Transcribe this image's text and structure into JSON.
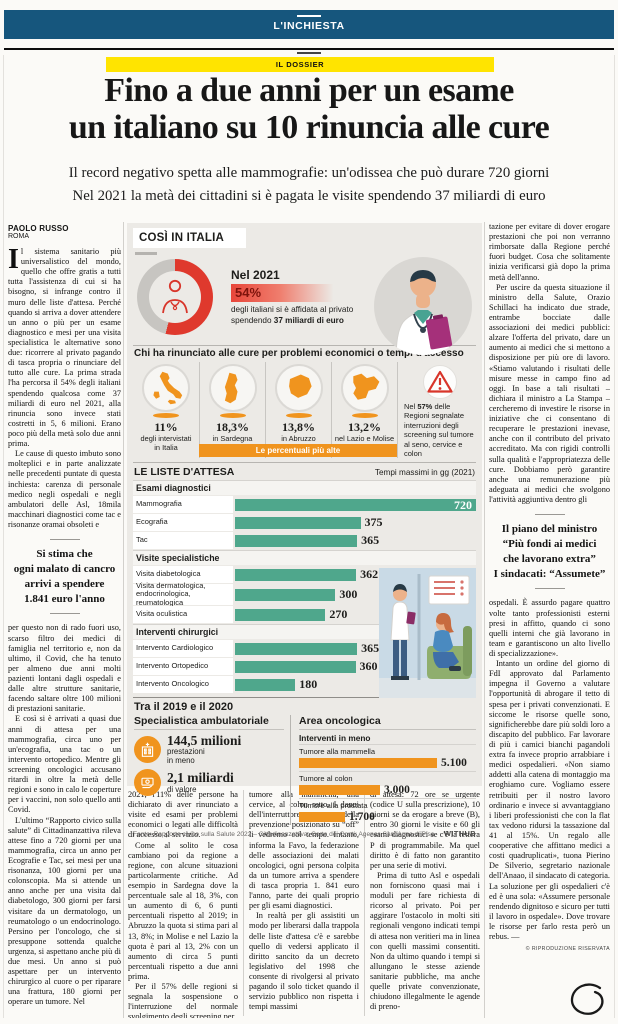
{
  "masthead": {
    "section": "L'INCHIESTA",
    "kicker": "IL DOSSIER"
  },
  "headline": [
    "Fino a due anni per un esame",
    "un italiano su 10 rinuncia alle cure"
  ],
  "standfirst": [
    "Il record negativo spetta alle mammografie: un'odissea che può durare 720 giorni",
    "Nel 2021 la metà dei cittadini si è pagata le visite spendendo 37 miliardi di euro"
  ],
  "byline": {
    "author": "PAOLO RUSSO",
    "place": "ROMA"
  },
  "infographic": {
    "title": "COSÌ IN ITALIA",
    "donut": {
      "year": "Nel 2021",
      "value": "54%",
      "pct": 54,
      "desc": "degli italiani si è affidata al privato",
      "desc2_pre": "spendendo ",
      "desc2_bold": "37 miliardi di euro"
    },
    "renounce": {
      "header": "Chi ha rinunciato alle cure per problemi economici o tempi d'accesso",
      "items": [
        {
          "region": "italia",
          "value": "11%",
          "label": "degli intervistati\nin Italia"
        },
        {
          "region": "sardegna",
          "value": "18,3%",
          "label": "in Sardegna"
        },
        {
          "region": "abruzzo",
          "value": "13,8%",
          "label": "in Abruzzo"
        },
        {
          "region": "lazio-molise",
          "value": "13,2%",
          "label": "nel Lazio e Molise"
        }
      ],
      "banner": "Le percentuali più alte",
      "warning_pre": "Nel ",
      "warning_bold": "57%",
      "warning_post": " delle Regioni segnalate interruzioni degli screening sul tumore al seno, cervice e colon"
    },
    "waiting": {
      "title": "LE LISTE D'ATTESA",
      "unit": "Tempi massimi in gg (2021)",
      "max": 720,
      "sections": [
        {
          "header": "Esami diagnostici",
          "rows": [
            {
              "label": "Mammografia",
              "value": 720,
              "display": "720",
              "inside": true
            },
            {
              "label": "Ecografia",
              "value": 375,
              "display": "375"
            },
            {
              "label": "Tac",
              "value": 365,
              "display": "365"
            }
          ]
        },
        {
          "header": "Visite specialistiche",
          "rows": [
            {
              "label": "Visita diabetologica",
              "value": 362,
              "display": "362"
            },
            {
              "label": "Visita dermatologica,\nendocrinologica, reumatologica",
              "value": 300,
              "display": "300",
              "tall": true
            },
            {
              "label": "Visita oculistica",
              "value": 270,
              "display": "270"
            }
          ]
        },
        {
          "header": "Interventi chirurgici",
          "rows": [
            {
              "label": "Intervento Cardiologico",
              "value": 365,
              "display": "365"
            },
            {
              "label": "Intervento Ortopedico",
              "value": 360,
              "display": "360"
            },
            {
              "label": "Intervento Oncologico",
              "value": 180,
              "display": "180"
            }
          ]
        }
      ]
    },
    "period": {
      "title": "Tra il 2019 e il 2020",
      "left": {
        "header": "Specialistica ambulatoriale",
        "stats": [
          {
            "icon": "hospital-icon",
            "big": "144,5 milioni",
            "small": "prestazioni\nin meno"
          },
          {
            "icon": "money-icon",
            "big": "2,1 miliardi",
            "small": "di valore"
          }
        ]
      },
      "right": {
        "header": "Area oncologica",
        "sub": "Interventi in meno",
        "max": 5100,
        "bars": [
          {
            "label": "Tumore alla mammella",
            "value": 5100,
            "display": "5.100"
          },
          {
            "label": "Tumore al colon",
            "value": 3000,
            "display": "3.000"
          },
          {
            "label": "Tumore alla prostata",
            "value": 1700,
            "display": "1.700"
          }
        ]
      }
    },
    "source": "Fonte: Rapporto civico sulla Salute 2022 – Cittadinanzattiva; Corte dei Conti; Agenas Sant'Anna di Pisa",
    "credit": "WITHUB"
  },
  "article": {
    "copyright": "© RIPRODUZIONE RISERVATA",
    "columns": [
      {
        "blocks": [
          {
            "t": "para",
            "drop": "I",
            "noindent": true,
            "text": "l sistema sanitario più universalistico del mondo, quello che offre gratis a tutti tutta l'assistenza di cui si ha bisogno, si infrange contro il muro delle liste d'attesa. Perché quando si arriva a dover attendere un anno o più per un esame diagnostico e mesi per una visita specialistica le alternative sono due: ricorrere al privato pagando di tasca propria o rinunciare del tutto alle cure. La prima strada l'ha percorsa il 54% degli italiani spendendo qualcosa come 37 miliardi di euro nel 2021, alla rinuncia sono invece stati costretti in 5, 6 milioni. Erano poco più della metà solo due anni prima."
          },
          {
            "t": "para",
            "text": "Le cause di questo imbuto sono molteplici e in parte analizzate nelle precedenti puntate di questa inchiesta: carenza di personale medico negli ospedali e negli ambulatori delle Asl, 18mila macchinari diagnostici come tac e risonanze oramai obsoleti e"
          },
          {
            "t": "quote",
            "lines": [
              "Si stima che",
              "ogni malato di cancro",
              "arrivi a spendere",
              "1.841 euro l'anno"
            ]
          },
          {
            "t": "para",
            "noindent": true,
            "text": "per questo non di rado fuori uso, scarso filtro dei medici di famiglia nel territorio e, non da ultimo, il Covid, che ha tenuto per almeno due anni molti pazienti lontani dagli ospedali e dalle altre strutture sanitarie, facendo saltare oltre 100 milioni di prestazioni sanitarie."
          },
          {
            "t": "para",
            "text": "E così si è arrivati a quasi due anni di attesa per una mammografia, circa uno per un'ecografia, una tac o un intervento ortopedico. Mentre gli screening oncologici accusano ritardi in oltre la metà delle regioni e sono in calo le coperture per i vaccini, non solo quello anti Covid."
          },
          {
            "t": "para",
            "text": "L'ultimo “Rapporto civico sulla salute” di Cittadinanzattiva rileva attese fino a 720 giorni per una mammografia, circa un anno per Ecografie e Tac, sei mesi per una risonanza, 100 giorni per una colonscopia. Ma si attende un anno anche per una visita dal diabetologo, 300 giorni per farsi visitare da un dermatologo, un reumatologo o un endocrinologo. Persino per l'oncologo, che si presuppone sottenda qualche urgenza, si aspettano anche più di due mesi. Un anno si può aspettare per un intervento chirurgico al cuore o per riparare una frattura, 180 giorni per operare un tumore. Nel"
          }
        ]
      },
      {
        "blocks": [
          {
            "t": "para",
            "noindent": true,
            "text": "2021, l'11% delle persone ha dichiarato di aver rinunciato a visite ed esami per problemi economici o legati alle difficoltà di accesso al servizio."
          },
          {
            "t": "para",
            "text": "Come al solito le cosa cambiano poi da regione a regione, con alcune situazioni particolarmente critiche. Ad esempio in Sardegna dove la percentuale sale al 18, 3%, con un aumento di 6, 6 punti percentuali rispetto al 2019; in Abruzzo la quota si stima pari al 13, 8%; in Molise e nel Lazio la quota è pari al 13, 2% con un aumento di circa 5 punti percentuali rispetto a due anni prima."
          },
          {
            "t": "para",
            "text": "Per il 57% delle regioni si segnala la sospensione o l'interruzione del normale svolgimento degli screening per"
          }
        ]
      },
      {
        "blocks": [
          {
            "t": "para",
            "noindent": true,
            "text": "tumore alla mammella, alla cervice, al colon retto. I danni dell'interruttore della prevenzione posizionato su “off” li vedremo col tempo. Intanto, informa la Favo, la federazione delle associazioni dei malati oncologici, ogni persona colpita da un tumore arriva a spendere di tasca propria 1. 841 euro l'anno, parte dei quali proprio per gli esami diagnostici."
          },
          {
            "t": "para",
            "text": "In realtà per gli assistiti un modo per liberarsi dalla trappola delle liste d'attesa c'è e sarebbe quello di vedersi applicato il diritto sancito da un decreto legislativo del 1998 che consente di rivolgersi al privato pagando il solo ticket quando il servizio pubblico non rispetta i tempi massimi"
          }
        ]
      },
      {
        "blocks": [
          {
            "t": "para",
            "noindent": true,
            "text": "di attesa: 72 ore se urgente (codice U sulla prescrizione), 10 giorni se da erogare a breve (B), entro 30 giorni le visite e 60 gli esami diagnostici se c'è la lettera P di programmabile. Ma quel diritto è di fatto non garantito per una serie di motivi."
          },
          {
            "t": "para",
            "text": "Prima di tutto Asl e ospedali non forniscono quasi mai i moduli per fare richiesta di ricorso al privato. Poi per aggirare l'ostacolo in molti siti regionali vengono indicati tempi di attesa non veritieri ma in linea con quelli massimi consentiti. Non da ultimo quando i tempi si allungano le stesse aziende sanitarie pubbliche, ma anche quelle private convenzionate, chiudono illegalmente le agende di preno-"
          }
        ]
      },
      {
        "blocks": [
          {
            "t": "para",
            "noindent": true,
            "text": "tazione per evitare di dover erogare prestazioni che poi non verranno rimborsate dalla Regione perché fuori budget. Cosa che solitamente inizia verificarsi già dopo la prima metà dell'anno."
          },
          {
            "t": "para",
            "text": "Per uscire da questa situazione il ministro della Salute, Orazio Schillaci ha indicato due strade, entrambe bocciate dalle associazioni dei medici pubblici: alzare l'offerta del privato, dare un aumento ai medici che si mettono a disposizione per più ore di lavoro. «Stiamo valutando i risultati delle misure messe in campo fino ad oggi. In base a tali risultati – dichiara il ministro a La Stampa – cercheremo di investire le risorse in iniziative che ci consentano di recuperare le prestazioni inevase, anche con il contributo del privato accreditato. Ma con rigidi controlli sulla qualità e l'appropriatezza delle cure. Dobbiamo però garantire anche una remunerazione più adeguata ai medici che svolgono l'attività aggiuntiva dentro gli"
          },
          {
            "t": "quote",
            "lines": [
              "Il piano del ministro",
              "“Più fondi ai medici",
              "che lavorano extra”",
              "I sindacati: “Assumete”"
            ]
          },
          {
            "t": "para",
            "noindent": true,
            "text": "ospedali. È assurdo pagare quattro volte tanto professionisti esterni presi in affitto, quando ci sono quelli interni che già lavorano in team e garantiscono un alto livello di specializzazione»."
          },
          {
            "t": "para",
            "text": "Intanto un ordine del giorno di FdI approvato dal Parlamento impegna il Governo a valutare l'opportunità di abrogare il tetto di spesa per i privati convenzionati. E siccome le risorse quelle sono, significherebbe dare più soldi loro a discapito del pubblico. Far lavorare di più i camici bianchi pagandoli extra fa invece proprio arrabbiare i medici ospedalieri. «Non siamo addetti alla catena di montaggio ma eroghiamo cure. Vogliamo essere retribuiti per il nostro lavoro ordinario e invece si avvantaggiano i liberi professionisti che con la flat tax vedono ridursi la tassazione dal 41 al 15%. Un regalo alle cooperative che affittano medici a costi quadruplicati», tuona Pierino De Silverio, segretario nazionale dell'Anaao, il sindacato di categoria. La soluzione per gli ospedalieri c'è ed è una sola: «Assumere personale rendendo dignitoso e sicuro per tutti il lavoro in ospedale». Dove trovare le risorse per farlo resta però un rebus. —"
          },
          {
            "t": "copyright"
          }
        ]
      }
    ]
  },
  "chart_data": [
    {
      "type": "pie",
      "title": "Nel 2021",
      "series": [
        {
          "name": "si è affidata al privato",
          "value": 54
        },
        {
          "name": "altro",
          "value": 46
        }
      ],
      "note": "54% degli italiani si è affidata al privato spendendo 37 miliardi di euro"
    },
    {
      "type": "bar",
      "title": "Chi ha rinunciato alle cure per problemi economici o tempi d'accesso",
      "categories": [
        "Italia (intervistati)",
        "Sardegna",
        "Abruzzo",
        "Lazio e Molise"
      ],
      "values": [
        11,
        18.3,
        13.8,
        13.2
      ],
      "unit": "%",
      "annotation": "Nel 57% delle Regioni segnalate interruzioni degli screening sul tumore al seno, cervice e colon"
    },
    {
      "type": "bar",
      "title": "LE LISTE D'ATTESA",
      "ylabel": "Tempi massimi in gg (2021)",
      "xlim": [
        0,
        720
      ],
      "groups": [
        {
          "section": "Esami diagnostici",
          "categories": [
            "Mammografia",
            "Ecografia",
            "Tac"
          ],
          "values": [
            720,
            375,
            365
          ]
        },
        {
          "section": "Visite specialistiche",
          "categories": [
            "Visita diabetologica",
            "Visita dermatologica, endocrinologica, reumatologica",
            "Visita oculistica"
          ],
          "values": [
            362,
            300,
            270
          ]
        },
        {
          "section": "Interventi chirurgici",
          "categories": [
            "Intervento Cardiologico",
            "Intervento Ortopedico",
            "Intervento Oncologico"
          ],
          "values": [
            365,
            360,
            180
          ]
        }
      ]
    },
    {
      "type": "bar",
      "title": "Area oncologica — Interventi in meno (tra il 2019 e il 2020)",
      "categories": [
        "Tumore alla mammella",
        "Tumore al colon",
        "Tumore alla prostata"
      ],
      "values": [
        5100,
        3000,
        1700
      ]
    },
    {
      "type": "table",
      "title": "Specialistica ambulatoriale (tra il 2019 e il 2020)",
      "rows": [
        {
          "label": "prestazioni in meno",
          "value": "144,5 milioni"
        },
        {
          "label": "di valore",
          "value": "2,1 miliardi"
        }
      ]
    }
  ],
  "colors": {
    "header_blue": "#16567d",
    "kicker_yellow": "#ffe400",
    "accent_red": "#df392d",
    "accent_orange": "#f0941e",
    "bar_teal": "#4fa78c",
    "info_bg": "#eceae6"
  }
}
